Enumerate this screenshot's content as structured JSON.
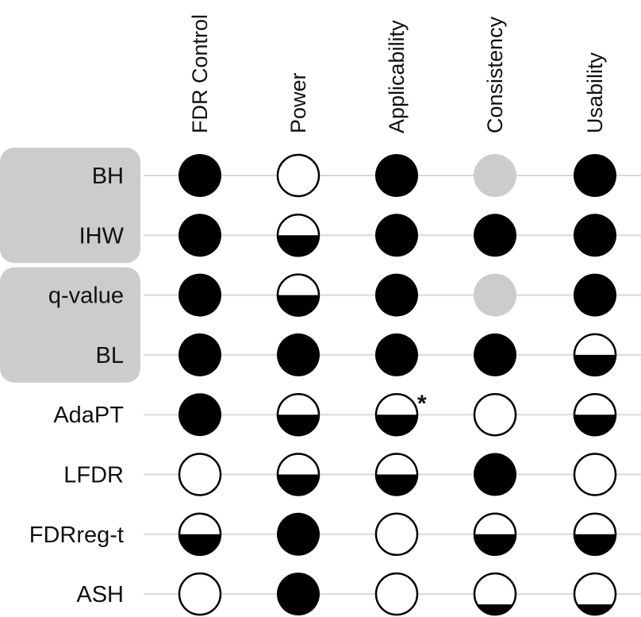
{
  "columns": [
    "FDR Control",
    "Power",
    "Applicability",
    "Consistency",
    "Usability"
  ],
  "rows": [
    "BH",
    "IHW",
    "q-value",
    "BL",
    "AdaPT",
    "LFDR",
    "FDRreg-t",
    "ASH"
  ],
  "groups": [
    {
      "rows": [
        "BH",
        "IHW"
      ]
    },
    {
      "rows": [
        "q-value",
        "BL"
      ]
    }
  ],
  "ratings": [
    [
      "full",
      "empty",
      "full",
      "na",
      "full"
    ],
    [
      "full",
      "half",
      "full",
      "full",
      "full"
    ],
    [
      "full",
      "half",
      "full",
      "na",
      "full"
    ],
    [
      "full",
      "full",
      "full",
      "full",
      "half"
    ],
    [
      "full",
      "half",
      "half",
      "empty",
      "half"
    ],
    [
      "empty",
      "half",
      "half",
      "full",
      "empty"
    ],
    [
      "half",
      "full",
      "empty",
      "half",
      "half"
    ],
    [
      "empty",
      "full",
      "empty",
      "quarter",
      "quarter"
    ]
  ],
  "annotations": [
    {
      "row": "AdaPT",
      "column": "Applicability",
      "text": "*"
    }
  ],
  "colors": {
    "filled": "#000000",
    "empty": "#ffffff",
    "na": "#cccccc",
    "outline": "#000000",
    "group_background": "#cccccc",
    "gridline": "#d9d9d9"
  }
}
